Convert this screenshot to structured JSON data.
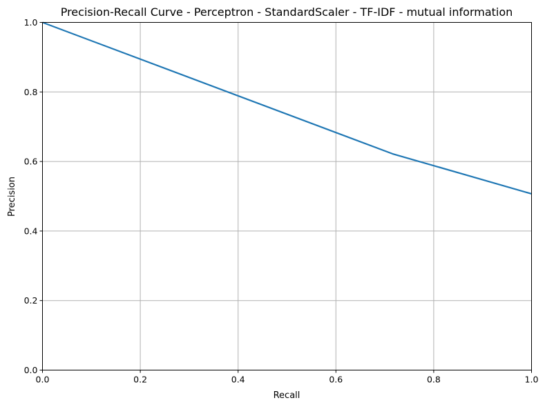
{
  "chart_data": {
    "type": "line",
    "title": "Precision-Recall Curve - Perceptron - StandardScaler - TF-IDF - mutual information",
    "xlabel": "Recall",
    "ylabel": "Precision",
    "xlim": [
      0.0,
      1.0
    ],
    "ylim": [
      0.0,
      1.0
    ],
    "xticks": [
      "0.0",
      "0.2",
      "0.4",
      "0.6",
      "0.8",
      "1.0"
    ],
    "yticks": [
      "0.0",
      "0.2",
      "0.4",
      "0.6",
      "0.8",
      "1.0"
    ],
    "grid": true,
    "legend": "none",
    "series": [
      {
        "color": "#1f77b4",
        "x": [
          0.0,
          0.716,
          1.0
        ],
        "y": [
          1.0,
          0.622,
          0.507
        ]
      }
    ]
  }
}
